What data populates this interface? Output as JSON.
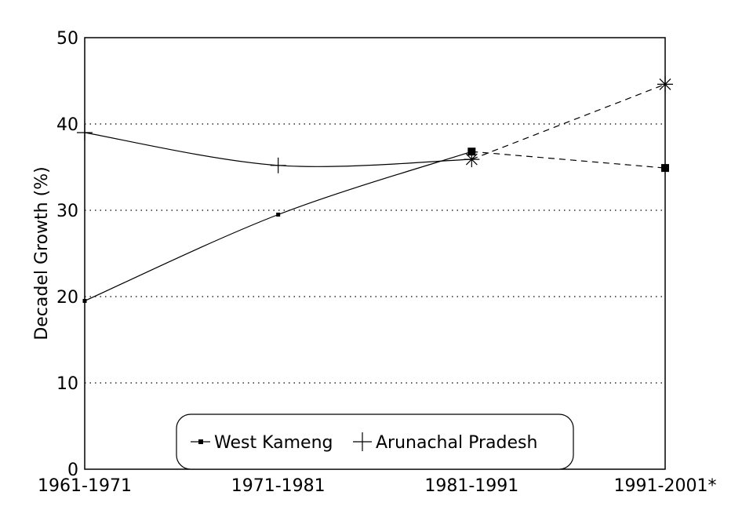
{
  "chart_data": {
    "type": "line",
    "title": "",
    "xlabel": "",
    "ylabel": "Decadel Growth (%)",
    "categories": [
      "1961-1971",
      "1971-1981",
      "1981-1991",
      "1991-2001*"
    ],
    "ylim": [
      0,
      50
    ],
    "yticks": [
      0,
      10,
      20,
      30,
      40,
      50
    ],
    "grid": "horizontal dotted",
    "legend_position": "bottom-center",
    "series": [
      {
        "name": "West Kameng",
        "marker": "square",
        "values": [
          19.5,
          29.5,
          36.8,
          34.9
        ],
        "dashed_from_index": 2
      },
      {
        "name": "Arunachal Pradesh",
        "marker": "plus",
        "values": [
          39.0,
          35.2,
          35.9,
          44.6
        ],
        "dashed_from_index": 2
      }
    ],
    "colors": {
      "line": "#000000",
      "grid": "#000000",
      "background": "#ffffff"
    }
  }
}
